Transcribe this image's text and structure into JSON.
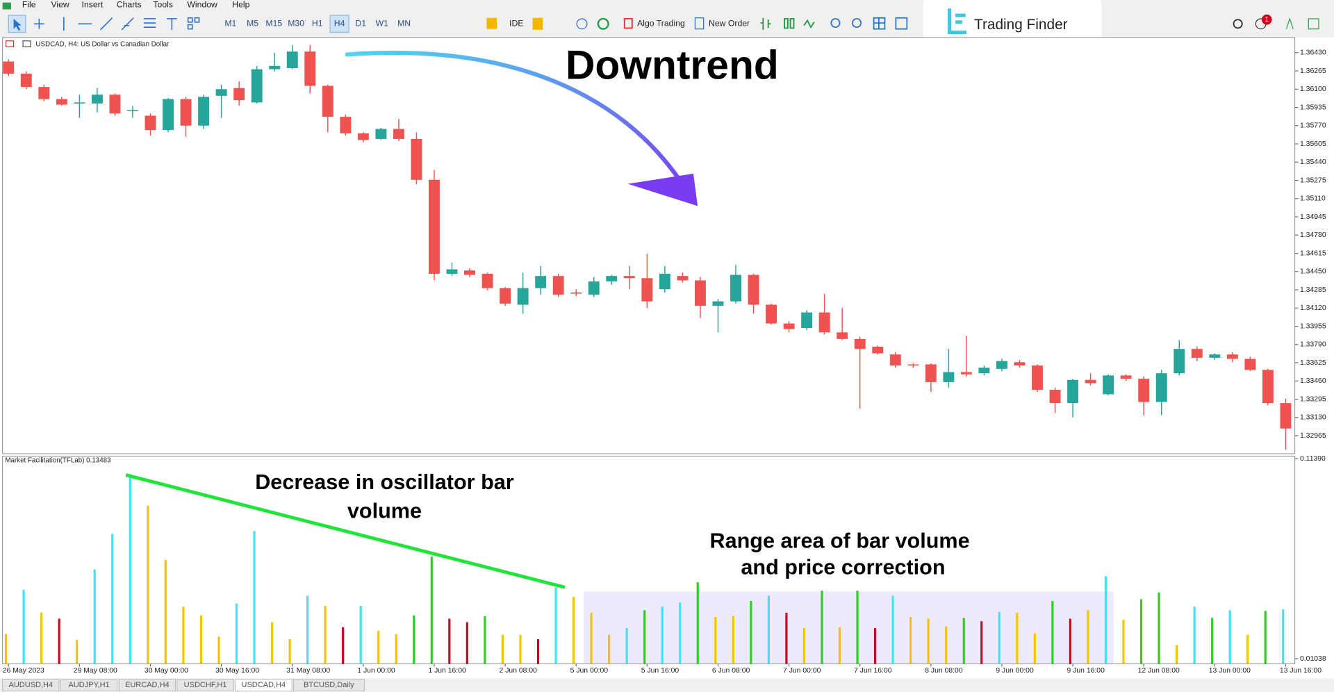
{
  "menu": [
    "File",
    "View",
    "Insert",
    "Charts",
    "Tools",
    "Window",
    "Help"
  ],
  "toolbar": {
    "timeframes": [
      "M1",
      "M5",
      "M15",
      "M30",
      "H1",
      "H4",
      "D1",
      "W1",
      "MN"
    ],
    "ide": "IDE",
    "algo_trading": "Algo Trading",
    "new_order": "New Order",
    "notification_count": 1
  },
  "brand": "Trading Finder",
  "tabs": [
    "AUDUSD,H4",
    "AUDJPY,H1",
    "EURCAD,H4",
    "USDCHF,H1",
    "USDCAD,H4",
    "BTCUSD,Daily"
  ],
  "chart_data": [
    {
      "type": "candlestick",
      "title": "USDCAD, H4:  US Dollar vs Canadian Dollar",
      "annotations": [
        "Downtrend"
      ],
      "grid": false,
      "up_color": "#26a69a",
      "down_color": "#ef5350",
      "categories": [
        "26 May 2023",
        null,
        null,
        null,
        "29 May 08:00",
        null,
        null,
        null,
        "30 May 00:00",
        null,
        null,
        null,
        "30 May 16:00",
        null,
        null,
        null,
        "31 May 08:00",
        null,
        null,
        null,
        "1 Jun 00:00",
        null,
        null,
        null,
        "1 Jun 16:00",
        null,
        null,
        null,
        "2 Jun 08:00",
        null,
        null,
        null,
        "5 Jun 00:00",
        null,
        null,
        null,
        "5 Jun 16:00",
        null,
        null,
        null,
        "6 Jun 08:00",
        null,
        null,
        null,
        "7 Jun 00:00",
        null,
        null,
        null,
        "7 Jun 16:00",
        null,
        null,
        null,
        "8 Jun 08:00",
        null,
        null,
        null,
        "9 Jun 00:00",
        null,
        null,
        null,
        "9 Jun 16:00",
        null,
        null,
        null,
        "12 Jun 08:00",
        null,
        null,
        null,
        "13 Jun 00:00",
        null,
        null,
        null,
        "13 Jun 16:00"
      ],
      "open": [
        1.3635,
        1.3624,
        1.3612,
        1.3601,
        1.3597,
        1.3597,
        1.3605,
        1.359,
        1.3586,
        1.3573,
        1.3601,
        1.3577,
        1.3604,
        1.3611,
        1.3598,
        1.3628,
        1.3629,
        1.3644,
        1.3613,
        1.3585,
        1.357,
        1.3565,
        1.3574,
        1.3565,
        1.3528,
        1.3443,
        1.3446,
        1.3443,
        1.343,
        1.3415,
        1.343,
        1.3441,
        1.3426,
        1.3424,
        1.3436,
        1.3441,
        1.3439,
        1.3429,
        1.3441,
        1.3437,
        1.3414,
        1.3418,
        1.3442,
        1.3415,
        1.3398,
        1.3394,
        1.3408,
        1.339,
        1.3384,
        1.3377,
        1.337,
        1.3361,
        1.3361,
        1.3345,
        1.3354,
        1.3353,
        1.3357,
        1.3363,
        1.336,
        1.3338,
        1.3326,
        1.3347,
        1.3334,
        1.3351,
        1.3348,
        1.3327,
        1.3353,
        1.3375,
        1.3367,
        1.337,
        1.3366,
        1.3356,
        1.3326
      ],
      "high": [
        1.3637,
        1.3626,
        1.3614,
        1.3603,
        1.3605,
        1.3611,
        1.3606,
        1.3595,
        1.3588,
        1.3602,
        1.3603,
        1.3605,
        1.3614,
        1.3617,
        1.3631,
        1.3643,
        1.365,
        1.365,
        1.3614,
        1.3587,
        1.3571,
        1.3575,
        1.3583,
        1.3571,
        1.3537,
        1.3453,
        1.3448,
        1.3444,
        1.3431,
        1.3444,
        1.345,
        1.3443,
        1.3429,
        1.344,
        1.3442,
        1.345,
        1.3461,
        1.345,
        1.3444,
        1.344,
        1.342,
        1.3451,
        1.3443,
        1.3416,
        1.34,
        1.341,
        1.3425,
        1.3412,
        1.3386,
        1.3378,
        1.3372,
        1.3362,
        1.3362,
        1.3375,
        1.3387,
        1.336,
        1.3366,
        1.3365,
        1.3361,
        1.334,
        1.3348,
        1.3353,
        1.3352,
        1.3352,
        1.335,
        1.3356,
        1.3383,
        1.3377,
        1.3371,
        1.3372,
        1.3368,
        1.3357,
        1.333
      ],
      "low": [
        1.3622,
        1.361,
        1.3599,
        1.3595,
        1.3584,
        1.3589,
        1.3586,
        1.3584,
        1.3568,
        1.3571,
        1.3567,
        1.3574,
        1.3584,
        1.3595,
        1.3597,
        1.3626,
        1.3628,
        1.3606,
        1.3571,
        1.3568,
        1.3562,
        1.3564,
        1.3563,
        1.3524,
        1.3437,
        1.3441,
        1.344,
        1.3428,
        1.3414,
        1.3407,
        1.3424,
        1.3422,
        1.3423,
        1.3422,
        1.3433,
        1.3429,
        1.3412,
        1.3426,
        1.3435,
        1.3403,
        1.339,
        1.3416,
        1.3407,
        1.3397,
        1.339,
        1.3392,
        1.3388,
        1.3383,
        1.3321,
        1.337,
        1.3358,
        1.3358,
        1.3336,
        1.334,
        1.335,
        1.3351,
        1.3355,
        1.3358,
        1.3336,
        1.3317,
        1.3313,
        1.3342,
        1.3333,
        1.3346,
        1.3315,
        1.3315,
        1.3351,
        1.3364,
        1.3365,
        1.3363,
        1.3355,
        1.3324,
        1.3284
      ],
      "close": [
        1.3624,
        1.3612,
        1.3601,
        1.3596,
        1.3598,
        1.3605,
        1.3588,
        1.3591,
        1.3573,
        1.3601,
        1.3577,
        1.3603,
        1.361,
        1.36,
        1.3628,
        1.3631,
        1.3644,
        1.3613,
        1.3585,
        1.357,
        1.3564,
        1.3574,
        1.3565,
        1.3528,
        1.3443,
        1.3447,
        1.3442,
        1.343,
        1.3416,
        1.343,
        1.3441,
        1.3424,
        1.3425,
        1.3436,
        1.3441,
        1.3439,
        1.3418,
        1.3443,
        1.3437,
        1.3414,
        1.3418,
        1.3442,
        1.3415,
        1.3398,
        1.3393,
        1.3408,
        1.339,
        1.3384,
        1.3375,
        1.3371,
        1.336,
        1.336,
        1.3345,
        1.3354,
        1.3352,
        1.3358,
        1.3364,
        1.336,
        1.3338,
        1.3326,
        1.3347,
        1.3344,
        1.3351,
        1.3348,
        1.3327,
        1.3353,
        1.3375,
        1.3367,
        1.337,
        1.3366,
        1.3356,
        1.3326,
        1.3303
      ],
      "ylim": [
        1.3281,
        1.3656
      ],
      "yticks": [
        {
          "value": 1.3643,
          "label": "1.36430"
        },
        {
          "value": 1.36265,
          "label": "1.36265"
        },
        {
          "value": 1.361,
          "label": "1.36100"
        },
        {
          "value": 1.35935,
          "label": "1.35935"
        },
        {
          "value": 1.3577,
          "label": "1.35770"
        },
        {
          "value": 1.35605,
          "label": "1.35605"
        },
        {
          "value": 1.3544,
          "label": "1.35440"
        },
        {
          "value": 1.35275,
          "label": "1.35275"
        },
        {
          "value": 1.3511,
          "label": "1.35110"
        },
        {
          "value": 1.34945,
          "label": "1.34945"
        },
        {
          "value": 1.3478,
          "label": "1.34780"
        },
        {
          "value": 1.34615,
          "label": "1.34615"
        },
        {
          "value": 1.3445,
          "label": "1.34450"
        },
        {
          "value": 1.34285,
          "label": "1.34285"
        },
        {
          "value": 1.3412,
          "label": "1.34120"
        },
        {
          "value": 1.33955,
          "label": "1.33955"
        },
        {
          "value": 1.3379,
          "label": "1.33790"
        },
        {
          "value": 1.33625,
          "label": "1.33625"
        },
        {
          "value": 1.3346,
          "label": "1.33460"
        },
        {
          "value": 1.33295,
          "label": "1.33295"
        },
        {
          "value": 1.3313,
          "label": "1.33130"
        },
        {
          "value": 1.32965,
          "label": "1.32965"
        }
      ]
    },
    {
      "type": "bar",
      "title": "Market Facilitation(TFLab) 0.13483",
      "annotations": [
        [
          "Decrease in oscillator bar",
          "volume"
        ],
        [
          "Range area of bar volume",
          "and price correction"
        ]
      ],
      "values": [
        0.0232,
        0.0461,
        0.0342,
        0.0311,
        0.0201,
        0.0566,
        0.0751,
        0.106,
        0.0897,
        0.0615,
        0.0373,
        0.0328,
        0.0218,
        0.039,
        0.0765,
        0.0293,
        0.0205,
        0.043,
        0.0377,
        0.0267,
        0.0377,
        0.0249,
        0.0232,
        0.0328,
        0.0632,
        0.0311,
        0.0293,
        0.0324,
        0.0227,
        0.0227,
        0.0205,
        0.0474,
        0.0425,
        0.0342,
        0.0227,
        0.0262,
        0.0355,
        0.0373,
        0.0395,
        0.05,
        0.032,
        0.0324,
        0.0403,
        0.043,
        0.0342,
        0.0262,
        0.0456,
        0.0267,
        0.0456,
        0.0262,
        0.043,
        0.032,
        0.0311,
        0.0271,
        0.0315,
        0.0298,
        0.0346,
        0.0342,
        0.0236,
        0.0403,
        0.0311,
        0.0355,
        0.0531,
        0.0306,
        0.0412,
        0.0447,
        0.0174,
        0.0373,
        0.0315,
        0.0355,
        0.0227,
        0.0351,
        0.0359
      ],
      "bar_colors": [
        "#f5c400",
        "#3ee4f5",
        "#f5c400",
        "#d4001f",
        "#f5c400",
        "#3ee4f5",
        "#3ee4f5",
        "#3ee4f5",
        "#f5c400",
        "#f5c400",
        "#f5c400",
        "#f5c400",
        "#f5c400",
        "#3ee4f5",
        "#3ee4f5",
        "#f5c400",
        "#f5c400",
        "#3ee4f5",
        "#f5c400",
        "#d4001f",
        "#3ee4f5",
        "#f5c400",
        "#f5c400",
        "#28d21e",
        "#28d21e",
        "#d4001f",
        "#d4001f",
        "#28d21e",
        "#f5c400",
        "#f5c400",
        "#d4001f",
        "#3ee4f5",
        "#f5c400",
        "#f5c400",
        "#f5c400",
        "#3ee4f5",
        "#28d21e",
        "#3ee4f5",
        "#3ee4f5",
        "#28d21e",
        "#f5c400",
        "#f5c400",
        "#28d21e",
        "#3ee4f5",
        "#d4001f",
        "#f5c400",
        "#28d21e",
        "#f5c400",
        "#28d21e",
        "#d4001f",
        "#3ee4f5",
        "#f5c400",
        "#f5c400",
        "#f5c400",
        "#28d21e",
        "#d4001f",
        "#3ee4f5",
        "#f5c400",
        "#f5c400",
        "#28d21e",
        "#d4001f",
        "#f5c400",
        "#3ee4f5",
        "#f5c400",
        "#28d21e",
        "#28d21e",
        "#f5c400",
        "#3ee4f5",
        "#28d21e",
        "#3ee4f5",
        "#f5c400",
        "#28d21e",
        "#3ee4f5"
      ],
      "ylim": [
        0.0077,
        0.1148
      ],
      "yticks": [
        {
          "value": 0.1139,
          "label": "0.11390"
        },
        {
          "value": 0.01038,
          "label": "0.01038"
        }
      ]
    }
  ]
}
